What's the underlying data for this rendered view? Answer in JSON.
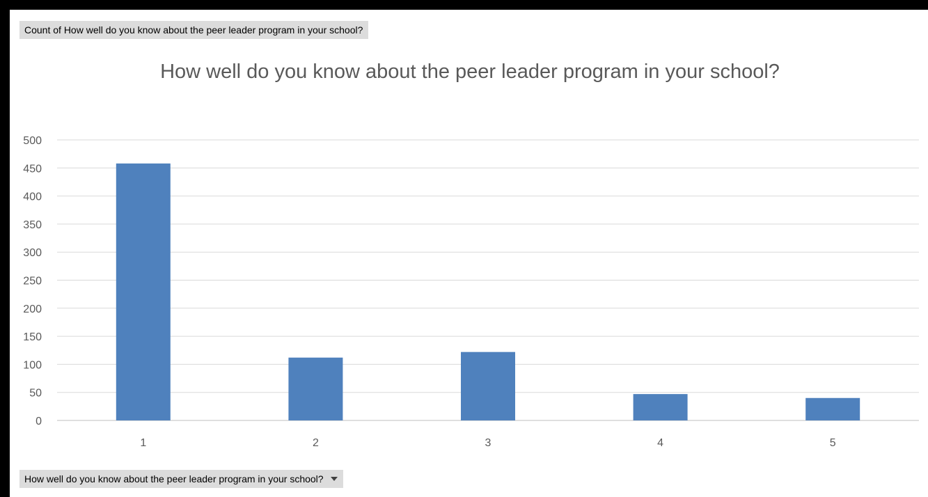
{
  "value_field_label": "Count of How well do you know about the peer leader program in your school?",
  "axis_field_label": "How well do you know about the peer leader program in your school?",
  "chart_data": {
    "type": "bar",
    "title": "How well do you know about the peer leader program in your school?",
    "xlabel": "",
    "ylabel": "",
    "categories": [
      "1",
      "2",
      "3",
      "4",
      "5"
    ],
    "values": [
      458,
      112,
      122,
      47,
      40
    ],
    "ylim": [
      0,
      500
    ],
    "yticks": [
      0,
      50,
      100,
      150,
      200,
      250,
      300,
      350,
      400,
      450,
      500
    ],
    "grid": true,
    "legend": "none",
    "bar_color": "#4f81bd"
  }
}
